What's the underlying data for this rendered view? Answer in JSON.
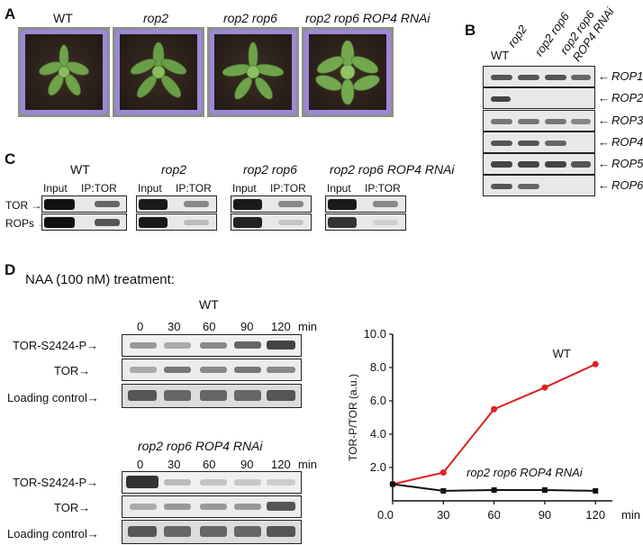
{
  "panelA": {
    "letter": "A",
    "genotypes": [
      "WT",
      "rop2",
      "rop2 rop6",
      "rop2 rop6 ROP4 RNAi"
    ]
  },
  "panelB": {
    "letter": "B",
    "columns": [
      "WT",
      "rop2",
      "rop2 rop6",
      "rop2 rop6",
      "ROP4 RNAi"
    ],
    "rows": [
      "ROP1",
      "ROP2",
      "ROP3",
      "ROP4",
      "ROP5",
      "ROP6"
    ]
  },
  "panelC": {
    "letter": "C",
    "groups": [
      "WT",
      "rop2",
      "rop2 rop6",
      "rop2 rop6 ROP4 RNAi"
    ],
    "lane_input": "Input",
    "lane_ip": "IP:TOR",
    "row_tor": "TOR",
    "row_rops": "ROPs"
  },
  "panelD": {
    "letter": "D",
    "treatment": "NAA (100 nM) treatment:",
    "wt_title": "WT",
    "mut_title": "rop2 rop6 ROP4 RNAi",
    "timepoints": [
      "0",
      "30",
      "60",
      "90",
      "120"
    ],
    "time_unit": "min",
    "row_labels": [
      "TOR-S2424-P",
      "TOR",
      "Loading control"
    ]
  },
  "chart_data": {
    "type": "line",
    "ylabel": "TOR-P/TOR (a.u.)",
    "xlabel": "min",
    "x": [
      0,
      30,
      60,
      90,
      120
    ],
    "xticks": [
      "0.0",
      "30",
      "60",
      "90",
      "120"
    ],
    "yticks": [
      "2.0",
      "4.0",
      "6.0",
      "8.0",
      "10.0"
    ],
    "ylim": [
      0,
      10
    ],
    "xlim": [
      0,
      130
    ],
    "series": [
      {
        "name": "WT",
        "values": [
          1.0,
          1.7,
          5.5,
          6.8,
          8.2
        ],
        "color": "#e02020",
        "marker": "circle"
      },
      {
        "name": "rop2 rop6 ROP4 RNAi",
        "values": [
          1.0,
          0.6,
          0.65,
          0.65,
          0.6
        ],
        "color": "#111111",
        "marker": "square"
      }
    ]
  }
}
